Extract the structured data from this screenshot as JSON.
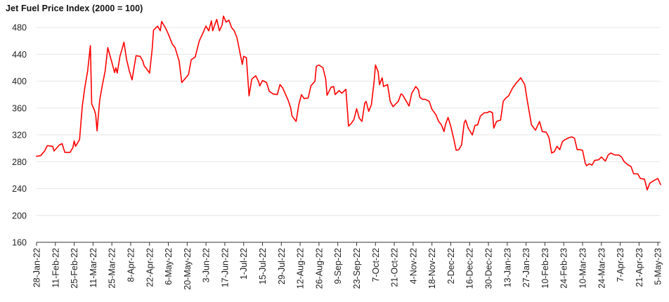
{
  "chart_data": {
    "type": "line",
    "title": "Jet Fuel Price Index (2000 = 100)",
    "xlabel": "",
    "ylabel": "",
    "ylim": [
      160,
      500
    ],
    "yticks": [
      160,
      200,
      240,
      280,
      320,
      360,
      400,
      440,
      480
    ],
    "xticks": [
      "28-Jan-22",
      "11-Feb-22",
      "25-Feb-22",
      "11-Mar-22",
      "25-Mar-22",
      "8-Apr-22",
      "22-Apr-22",
      "6-May-22",
      "20-May-22",
      "3-Jun-22",
      "17-Jun-22",
      "1-Jul-22",
      "15-Jul-22",
      "29-Jul-22",
      "12-Aug-22",
      "26-Aug-22",
      "9-Sep-22",
      "23-Sep-22",
      "7-Oct-22",
      "21-Oct-22",
      "4-Nov-22",
      "18-Nov-22",
      "2-Dec-22",
      "16-Dec-22",
      "30-Dec-22",
      "13-Jan-23",
      "27-Jan-23",
      "10-Feb-23",
      "24-Feb-23",
      "10-Mar-23",
      "24-Mar-23",
      "7-Apr-23",
      "21-Apr-23",
      "5-May-23"
    ],
    "grid": "horizontal",
    "colors": {
      "line": "#ff0000",
      "grid": "#e6e6e6",
      "axis": "#333333"
    },
    "series": [
      {
        "points": [
          [
            "28-Jan-22",
            288
          ],
          [
            "31-Jan-22",
            289
          ],
          [
            "3-Feb-22",
            296
          ],
          [
            "5-Feb-22",
            304
          ],
          [
            "9-Feb-22",
            303
          ],
          [
            "10-Feb-22",
            296
          ],
          [
            "14-Feb-22",
            305
          ],
          [
            "16-Feb-22",
            307
          ],
          [
            "18-Feb-22",
            294
          ],
          [
            "22-Feb-22",
            294
          ],
          [
            "24-Feb-22",
            301
          ],
          [
            "25-Feb-22",
            311
          ],
          [
            "26-Feb-22",
            303
          ],
          [
            "1-Mar-22",
            313
          ],
          [
            "3-Mar-22",
            363
          ],
          [
            "5-Mar-22",
            392
          ],
          [
            "7-Mar-22",
            415
          ],
          [
            "9-Mar-22",
            453
          ],
          [
            "10-Mar-22",
            366
          ],
          [
            "12-Mar-22",
            357
          ],
          [
            "13-Mar-22",
            350
          ],
          [
            "14-Mar-22",
            326
          ],
          [
            "16-Mar-22",
            372
          ],
          [
            "18-Mar-22",
            395
          ],
          [
            "20-Mar-22",
            415
          ],
          [
            "22-Mar-22",
            450
          ],
          [
            "25-Mar-22",
            428
          ],
          [
            "27-Mar-22",
            413
          ],
          [
            "28-Mar-22",
            420
          ],
          [
            "29-Mar-22",
            412
          ],
          [
            "31-Mar-22",
            437
          ],
          [
            "3-Apr-22",
            458
          ],
          [
            "5-Apr-22",
            432
          ],
          [
            "7-Apr-22",
            415
          ],
          [
            "9-Apr-22",
            402
          ],
          [
            "12-Apr-22",
            438
          ],
          [
            "15-Apr-22",
            437
          ],
          [
            "17-Apr-22",
            430
          ],
          [
            "18-Apr-22",
            423
          ],
          [
            "20-Apr-22",
            418
          ],
          [
            "22-Apr-22",
            412
          ],
          [
            "24-Apr-22",
            448
          ],
          [
            "25-Apr-22",
            476
          ],
          [
            "28-Apr-22",
            482
          ],
          [
            "30-Apr-22",
            475
          ],
          [
            "1-May-22",
            489
          ],
          [
            "4-May-22",
            479
          ],
          [
            "6-May-22",
            470
          ],
          [
            "9-May-22",
            455
          ],
          [
            "11-May-22",
            450
          ],
          [
            "14-May-22",
            430
          ],
          [
            "16-May-22",
            398
          ],
          [
            "19-May-22",
            405
          ],
          [
            "21-May-22",
            410
          ],
          [
            "23-May-22",
            432
          ],
          [
            "26-May-22",
            436
          ],
          [
            "29-May-22",
            460
          ],
          [
            "1-Jun-22",
            473
          ],
          [
            "3-Jun-22",
            482
          ],
          [
            "5-Jun-22",
            475
          ],
          [
            "7-Jun-22",
            490
          ],
          [
            "8-Jun-22",
            475
          ],
          [
            "11-Jun-22",
            492
          ],
          [
            "13-Jun-22",
            475
          ],
          [
            "15-Jun-22",
            484
          ],
          [
            "16-Jun-22",
            497
          ],
          [
            "18-Jun-22",
            488
          ],
          [
            "20-Jun-22",
            491
          ],
          [
            "22-Jun-22",
            480
          ],
          [
            "24-Jun-22",
            475
          ],
          [
            "26-Jun-22",
            465
          ],
          [
            "28-Jun-22",
            445
          ],
          [
            "30-Jun-22",
            425
          ],
          [
            "1-Jul-22",
            437
          ],
          [
            "3-Jul-22",
            435
          ],
          [
            "5-Jul-22",
            378
          ],
          [
            "7-Jul-22",
            403
          ],
          [
            "10-Jul-22",
            408
          ],
          [
            "12-Jul-22",
            400
          ],
          [
            "13-Jul-22",
            393
          ],
          [
            "15-Jul-22",
            401
          ],
          [
            "18-Jul-22",
            398
          ],
          [
            "20-Jul-22",
            385
          ],
          [
            "23-Jul-22",
            381
          ],
          [
            "26-Jul-22",
            380
          ],
          [
            "28-Jul-22",
            395
          ],
          [
            "30-Jul-22",
            390
          ],
          [
            "3-Aug-22",
            372
          ],
          [
            "5-Aug-22",
            360
          ],
          [
            "6-Aug-22",
            348
          ],
          [
            "9-Aug-22",
            340
          ],
          [
            "11-Aug-22",
            365
          ],
          [
            "13-Aug-22",
            380
          ],
          [
            "15-Aug-22",
            374
          ],
          [
            "18-Aug-22",
            375
          ],
          [
            "20-Aug-22",
            393
          ],
          [
            "23-Aug-22",
            400
          ],
          [
            "24-Aug-22",
            422
          ],
          [
            "26-Aug-22",
            424
          ],
          [
            "29-Aug-22",
            420
          ],
          [
            "31-Aug-22",
            403
          ],
          [
            "1-Sep-22",
            379
          ],
          [
            "4-Sep-22",
            391
          ],
          [
            "6-Sep-22",
            392
          ],
          [
            "7-Sep-22",
            380
          ],
          [
            "10-Sep-22",
            386
          ],
          [
            "12-Sep-22",
            382
          ],
          [
            "14-Sep-22",
            386
          ],
          [
            "15-Sep-22",
            388
          ],
          [
            "17-Sep-22",
            333
          ],
          [
            "19-Sep-22",
            337
          ],
          [
            "21-Sep-22",
            343
          ],
          [
            "23-Sep-22",
            359
          ],
          [
            "25-Sep-22",
            345
          ],
          [
            "27-Sep-22",
            340
          ],
          [
            "29-Sep-22",
            367
          ],
          [
            "30-Sep-22",
            370
          ],
          [
            "2-Oct-22",
            355
          ],
          [
            "4-Oct-22",
            365
          ],
          [
            "6-Oct-22",
            400
          ],
          [
            "7-Oct-22",
            424
          ],
          [
            "9-Oct-22",
            414
          ],
          [
            "10-Oct-22",
            395
          ],
          [
            "12-Oct-22",
            405
          ],
          [
            "13-Oct-22",
            392
          ],
          [
            "16-Oct-22",
            395
          ],
          [
            "18-Oct-22",
            370
          ],
          [
            "20-Oct-22",
            362
          ],
          [
            "22-Oct-22",
            366
          ],
          [
            "24-Oct-22",
            370
          ],
          [
            "26-Oct-22",
            381
          ],
          [
            "27-Oct-22",
            380
          ],
          [
            "30-Oct-22",
            370
          ],
          [
            "1-Nov-22",
            363
          ],
          [
            "3-Nov-22",
            382
          ],
          [
            "6-Nov-22",
            392
          ],
          [
            "8-Nov-22",
            387
          ],
          [
            "9-Nov-22",
            376
          ],
          [
            "11-Nov-22",
            373
          ],
          [
            "13-Nov-22",
            373
          ],
          [
            "16-Nov-22",
            370
          ],
          [
            "18-Nov-22",
            358
          ],
          [
            "21-Nov-22",
            350
          ],
          [
            "23-Nov-22",
            340
          ],
          [
            "25-Nov-22",
            335
          ],
          [
            "27-Nov-22",
            325
          ],
          [
            "28-Nov-22",
            335
          ],
          [
            "30-Nov-22",
            346
          ],
          [
            "2-Dec-22",
            333
          ],
          [
            "4-Dec-22",
            316
          ],
          [
            "6-Dec-22",
            297
          ],
          [
            "8-Dec-22",
            298
          ],
          [
            "10-Dec-22",
            305
          ],
          [
            "12-Dec-22",
            338
          ],
          [
            "13-Dec-22",
            342
          ],
          [
            "15-Dec-22",
            330
          ],
          [
            "18-Dec-22",
            320
          ],
          [
            "20-Dec-22",
            334
          ],
          [
            "22-Dec-22",
            335
          ],
          [
            "24-Dec-22",
            348
          ],
          [
            "27-Dec-22",
            353
          ],
          [
            "29-Dec-22",
            353
          ],
          [
            "31-Dec-22",
            355
          ],
          [
            "2-Jan-23",
            353
          ],
          [
            "3-Jan-23",
            330
          ],
          [
            "5-Jan-23",
            340
          ],
          [
            "8-Jan-23",
            342
          ],
          [
            "10-Jan-23",
            370
          ],
          [
            "12-Jan-23",
            375
          ],
          [
            "14-Jan-23",
            378
          ],
          [
            "17-Jan-23",
            390
          ],
          [
            "20-Jan-23",
            398
          ],
          [
            "21-Jan-23",
            400
          ],
          [
            "23-Jan-23",
            405
          ],
          [
            "26-Jan-23",
            395
          ],
          [
            "28-Jan-23",
            370
          ],
          [
            "31-Jan-23",
            335
          ],
          [
            "3-Feb-23",
            327
          ],
          [
            "6-Feb-23",
            340
          ],
          [
            "8-Feb-23",
            325
          ],
          [
            "11-Feb-23",
            324
          ],
          [
            "13-Feb-23",
            316
          ],
          [
            "15-Feb-23",
            293
          ],
          [
            "17-Feb-23",
            295
          ],
          [
            "19-Feb-23",
            303
          ],
          [
            "21-Feb-23",
            298
          ],
          [
            "23-Feb-23",
            310
          ],
          [
            "25-Feb-23",
            313
          ],
          [
            "28-Feb-23",
            316
          ],
          [
            "2-Mar-23",
            317
          ],
          [
            "4-Mar-23",
            315
          ],
          [
            "6-Mar-23",
            298
          ],
          [
            "8-Mar-23",
            298
          ],
          [
            "10-Mar-23",
            297
          ],
          [
            "12-Mar-23",
            278
          ],
          [
            "13-Mar-23",
            274
          ],
          [
            "15-Mar-23",
            277
          ],
          [
            "17-Mar-23",
            275
          ],
          [
            "19-Mar-23",
            282
          ],
          [
            "22-Mar-23",
            283
          ],
          [
            "24-Mar-23",
            287
          ],
          [
            "27-Mar-23",
            281
          ],
          [
            "29-Mar-23",
            290
          ],
          [
            "31-Mar-23",
            293
          ],
          [
            "3-Apr-23",
            290
          ],
          [
            "6-Apr-23",
            290
          ],
          [
            "8-Apr-23",
            287
          ],
          [
            "10-Apr-23",
            280
          ],
          [
            "13-Apr-23",
            275
          ],
          [
            "15-Apr-23",
            273
          ],
          [
            "17-Apr-23",
            262
          ],
          [
            "20-Apr-23",
            262
          ],
          [
            "22-Apr-23",
            255
          ],
          [
            "25-Apr-23",
            254
          ],
          [
            "26-Apr-23",
            247
          ],
          [
            "27-Apr-23",
            238
          ],
          [
            "29-Apr-23",
            248
          ],
          [
            "2-May-23",
            252
          ],
          [
            "5-May-23",
            255
          ],
          [
            "7-May-23",
            246
          ]
        ]
      }
    ]
  }
}
